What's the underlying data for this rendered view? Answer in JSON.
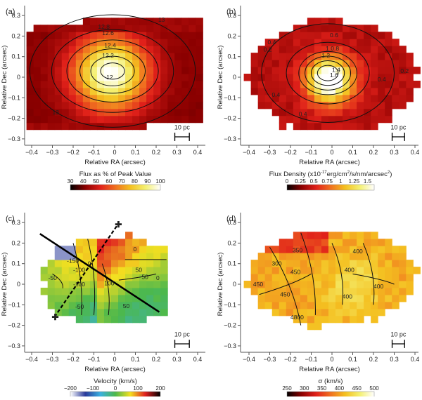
{
  "chart_data": [
    {
      "type": "heatmap",
      "panel": "(a)",
      "xlabel": "Relative RA (arcsec)",
      "ylabel": "Relative Dec (arcsec)",
      "xlim": [
        -0.44,
        0.44
      ],
      "ylim": [
        -0.33,
        0.33
      ],
      "xticks": [
        "-0.4",
        "-0.3",
        "-0.2",
        "-0.1",
        "0",
        "0.1",
        "0.2",
        "0.3",
        "0.4"
      ],
      "yticks": [
        "0.3",
        "0.2",
        "0.1",
        "0",
        "-0.1",
        "-0.2",
        "-0.3"
      ],
      "contour_labels": [
        "13",
        "12.8",
        "12.6",
        "12.4",
        "12.2",
        "12",
        "13"
      ],
      "scale_bar": "10 pc",
      "colorbar": {
        "title": "Flux as % of Peak Value",
        "ticks": [
          "30",
          "40",
          "50",
          "60",
          "70",
          "80",
          "90",
          "100"
        ],
        "colormap": [
          "#000000",
          "#8b0000",
          "#e0201a",
          "#f07020",
          "#f4c020",
          "#f4f070",
          "#ffffff"
        ]
      }
    },
    {
      "type": "heatmap",
      "panel": "(b)",
      "xlabel": "Relative RA (arcsec)",
      "ylabel": "Relative Dec (arcsec)",
      "xlim": [
        -0.44,
        0.44
      ],
      "ylim": [
        -0.33,
        0.33
      ],
      "xticks": [
        "-0.4",
        "-0.3",
        "-0.2",
        "-0.1",
        "0",
        "0.1",
        "0.2",
        "0.3",
        "0.4"
      ],
      "yticks": [
        "0.3",
        "0.2",
        "0.1",
        "0",
        "-0.1",
        "-0.2",
        "-0.3"
      ],
      "contour_labels": [
        "0.4",
        "0.2",
        "0.6",
        "1.0.8",
        "1.2",
        "1.4",
        "1.6",
        "0.4",
        "0.2",
        "0.4",
        "0.4"
      ],
      "scale_bar": "10 pc",
      "colorbar": {
        "title": "Flux Density (x10",
        "title_sup": "-17",
        "title_rest": "erg/cm",
        "title_sup2": "2",
        "title_rest2": "/s/nm/arcsec",
        "title_sup3": "2",
        "title_end": ")",
        "ticks": [
          "0",
          "0.25",
          "0.5",
          "0.75",
          "1",
          "1.25",
          "1.5"
        ],
        "colormap": [
          "#000000",
          "#8b0000",
          "#e0201a",
          "#f07020",
          "#f4c020",
          "#f4f070",
          "#ffffff"
        ]
      }
    },
    {
      "type": "heatmap",
      "panel": "(c)",
      "xlabel": "Relative RA (arcsec)",
      "ylabel": "Relative Dec (arcsec)",
      "xlim": [
        -0.44,
        0.44
      ],
      "ylim": [
        -0.33,
        0.33
      ],
      "xticks": [
        "-0.4",
        "-0.3",
        "-0.2",
        "-0.1",
        "0",
        "0.1",
        "0.2",
        "0.3",
        "0.4"
      ],
      "yticks": [
        "0.3",
        "0.2",
        "0.1",
        "0",
        "-0.1",
        "-0.2",
        "-0.3"
      ],
      "contour_labels": [
        "-150",
        "-100",
        "-50",
        "-100",
        "-50",
        "0",
        "0",
        "50",
        "50",
        "0",
        "100",
        "50"
      ],
      "scale_bar": "10 pc",
      "colorbar": {
        "title": "Velocity (km/s)",
        "ticks": [
          "-200",
          "-100",
          "0",
          "100",
          "200"
        ],
        "colormap": [
          "#ffffff",
          "#2a3a9a",
          "#3ab0e0",
          "#4cb84c",
          "#f4e020",
          "#e02020",
          "#000000"
        ]
      }
    },
    {
      "type": "heatmap",
      "panel": "(d)",
      "xlabel": "Relative RA (arcsec)",
      "ylabel": "Relative Dec (arcsec)",
      "xlim": [
        -0.44,
        0.44
      ],
      "ylim": [
        -0.33,
        0.33
      ],
      "xticks": [
        "-0.4",
        "-0.3",
        "-0.2",
        "-0.1",
        "0",
        "0.1",
        "0.2",
        "0.3",
        "0.4"
      ],
      "yticks": [
        "0.3",
        "0.2",
        "0.1",
        "0",
        "-0.1",
        "-0.2",
        "-0.3"
      ],
      "contour_labels": [
        "300",
        "350",
        "450",
        "400",
        "450",
        "400",
        "450",
        "4800",
        "400",
        "400"
      ],
      "scale_bar": "10 pc",
      "colorbar": {
        "title": "σ (km/s)",
        "ticks": [
          "250",
          "300",
          "350",
          "400",
          "450",
          "500"
        ],
        "colormap": [
          "#000000",
          "#8b0000",
          "#e0201a",
          "#f07020",
          "#f4c020",
          "#f4f070",
          "#ffffff"
        ]
      }
    }
  ]
}
